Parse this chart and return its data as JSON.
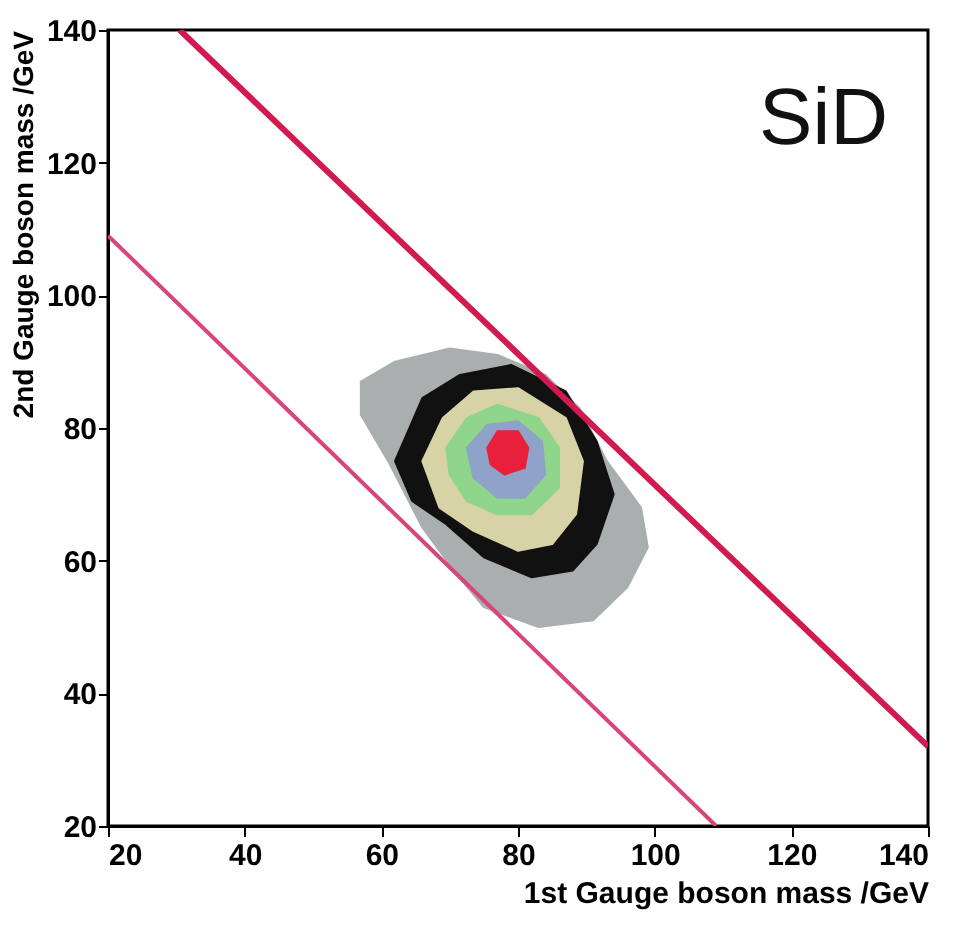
{
  "chart_data": {
    "type": "line",
    "xlabel": "1st Gauge boson mass /GeV",
    "ylabel": "2nd Gauge boson mass /GeV",
    "annotations": [
      "SiD"
    ],
    "xlim": [
      20,
      140
    ],
    "ylim": [
      20,
      140
    ],
    "xticks": [
      20,
      40,
      60,
      80,
      100,
      120,
      140
    ],
    "yticks": [
      20,
      40,
      60,
      80,
      100,
      120,
      140
    ],
    "grid": false,
    "series": [
      {
        "type": "area",
        "color": "#a9afae",
        "x": [
          57,
          62,
          70,
          77,
          84,
          89,
          93,
          98,
          99,
          96,
          91,
          83,
          75,
          71,
          66,
          61,
          57
        ],
        "values": [
          87,
          90,
          92,
          91,
          88,
          83,
          75,
          68,
          62,
          56,
          51,
          50,
          53,
          58,
          65,
          75,
          82
        ]
      },
      {
        "type": "area",
        "color": "#111111",
        "x": [
          62,
          66,
          71.5,
          79,
          87,
          91.5,
          94,
          91.5,
          88,
          82,
          75,
          69.5,
          64.5
        ],
        "values": [
          75,
          84.5,
          88,
          89.5,
          85.5,
          78,
          70,
          62.5,
          58.5,
          57.5,
          60.5,
          65.5,
          69
        ]
      },
      {
        "type": "area",
        "color": "#d8d3a6",
        "x": [
          66,
          69,
          73.5,
          80,
          87,
          89.5,
          88.5,
          85,
          80,
          73.5,
          68.5
        ],
        "values": [
          75,
          81.5,
          85.5,
          86,
          81.5,
          75,
          67,
          62.5,
          61.5,
          64.5,
          68
        ]
      },
      {
        "type": "area",
        "color": "#8fd58b",
        "x": [
          69.5,
          72.5,
          77,
          83,
          86,
          86,
          82,
          77,
          72.5,
          70
        ],
        "values": [
          77,
          81.5,
          83.5,
          81.5,
          77,
          71,
          67,
          67,
          69,
          73
        ]
      },
      {
        "type": "area",
        "color": "#8fa3c8",
        "x": [
          72.5,
          75.5,
          80,
          83.5,
          84,
          81,
          77,
          73.5
        ],
        "values": [
          77,
          80.5,
          81,
          78,
          73,
          69.5,
          69.5,
          72.5
        ]
      },
      {
        "type": "area",
        "color": "#e8203c",
        "x": [
          75.5,
          77,
          80,
          81.5,
          81,
          78,
          76
        ],
        "values": [
          77,
          79.5,
          79.5,
          77,
          74,
          73,
          74.5
        ]
      },
      {
        "color": "#d11a4f",
        "x": [
          30.5,
          140
        ],
        "values": [
          140,
          32
        ]
      },
      {
        "color": "#d8457a",
        "x": [
          20,
          109
        ],
        "values": [
          109,
          20
        ]
      }
    ]
  }
}
